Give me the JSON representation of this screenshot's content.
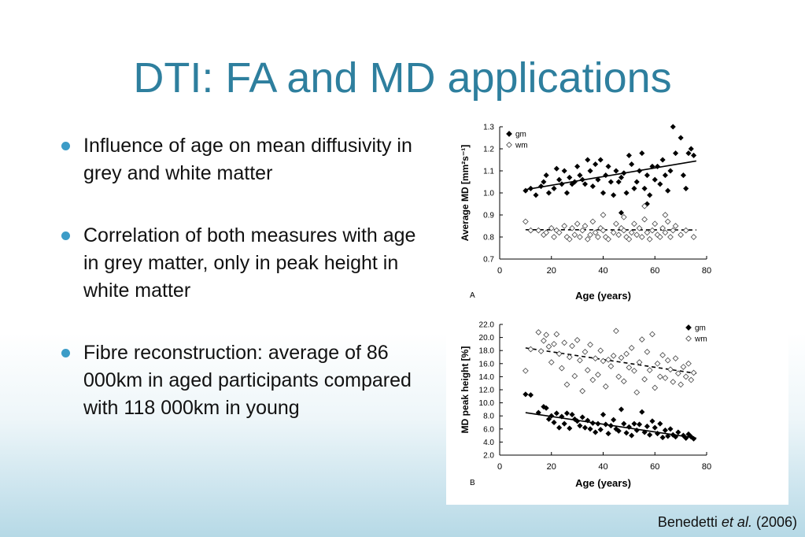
{
  "slide": {
    "title": "DTI: FA and MD applications",
    "bullets": [
      "Influence of age on mean diffusivity in grey and white matter",
      "Correlation of both measures with age in grey matter, only in peak height in white matter",
      "Fibre reconstruction: average of 86 000km in aged participants compared with 118 000km in young"
    ],
    "citation": {
      "author": "Benedetti",
      "etal": "et al.",
      "year": "(2006)"
    },
    "colors": {
      "title": "#2e7f9e",
      "bullet": "#3c9cc7"
    }
  },
  "chart_data": [
    {
      "type": "scatter",
      "panel": "A",
      "xlabel": "Age (years)",
      "ylabel": "Average MD [mm²s⁻¹]",
      "xlim": [
        0,
        80
      ],
      "ylim": [
        0.7,
        1.3
      ],
      "xticks": [
        "0",
        "20",
        "40",
        "60",
        "80"
      ],
      "yticks": [
        "0.7",
        "0.8",
        "0.9",
        "1.0",
        "1.1",
        "1.2",
        "1.3"
      ],
      "legend_position": "top-left",
      "series": [
        {
          "name": "gm",
          "marker": "filled-diamond",
          "points": [
            [
              10,
              1.01
            ],
            [
              12,
              1.02
            ],
            [
              14,
              0.99
            ],
            [
              16,
              1.03
            ],
            [
              17,
              1.05
            ],
            [
              18,
              1.08
            ],
            [
              19,
              1.0
            ],
            [
              21,
              1.02
            ],
            [
              22,
              1.11
            ],
            [
              23,
              1.06
            ],
            [
              24,
              1.04
            ],
            [
              25,
              1.1
            ],
            [
              26,
              1.0
            ],
            [
              27,
              1.07
            ],
            [
              28,
              1.04
            ],
            [
              29,
              1.05
            ],
            [
              30,
              1.12
            ],
            [
              31,
              1.08
            ],
            [
              32,
              1.06
            ],
            [
              33,
              1.04
            ],
            [
              34,
              1.15
            ],
            [
              35,
              1.1
            ],
            [
              36,
              1.03
            ],
            [
              37,
              1.13
            ],
            [
              38,
              1.06
            ],
            [
              39,
              1.15
            ],
            [
              40,
              1.0
            ],
            [
              41,
              1.08
            ],
            [
              42,
              1.12
            ],
            [
              43,
              1.05
            ],
            [
              44,
              0.99
            ],
            [
              45,
              1.1
            ],
            [
              46,
              1.05
            ],
            [
              47,
              1.07
            ],
            [
              48,
              1.09
            ],
            [
              49,
              1.0
            ],
            [
              50,
              1.17
            ],
            [
              51,
              1.13
            ],
            [
              52,
              1.02
            ],
            [
              53,
              1.05
            ],
            [
              54,
              1.1
            ],
            [
              55,
              1.18
            ],
            [
              56,
              1.02
            ],
            [
              57,
              1.08
            ],
            [
              58,
              0.99
            ],
            [
              59,
              1.12
            ],
            [
              60,
              1.06
            ],
            [
              61,
              1.12
            ],
            [
              62,
              1.04
            ],
            [
              63,
              1.15
            ],
            [
              64,
              1.08
            ],
            [
              65,
              1.01
            ],
            [
              66,
              1.1
            ],
            [
              67,
              1.3
            ],
            [
              68,
              1.18
            ],
            [
              70,
              1.25
            ],
            [
              71,
              1.08
            ],
            [
              72,
              1.02
            ],
            [
              73,
              1.18
            ],
            [
              74,
              1.2
            ],
            [
              75,
              1.17
            ],
            [
              47,
              0.91
            ],
            [
              57,
              0.95
            ]
          ]
        },
        {
          "name": "wm",
          "marker": "open-diamond",
          "points": [
            [
              10,
              0.87
            ],
            [
              12,
              0.83
            ],
            [
              15,
              0.83
            ],
            [
              17,
              0.81
            ],
            [
              18,
              0.82
            ],
            [
              20,
              0.84
            ],
            [
              21,
              0.8
            ],
            [
              22,
              0.83
            ],
            [
              23,
              0.82
            ],
            [
              25,
              0.85
            ],
            [
              26,
              0.8
            ],
            [
              27,
              0.79
            ],
            [
              28,
              0.84
            ],
            [
              29,
              0.81
            ],
            [
              30,
              0.86
            ],
            [
              31,
              0.8
            ],
            [
              32,
              0.83
            ],
            [
              33,
              0.85
            ],
            [
              34,
              0.79
            ],
            [
              35,
              0.81
            ],
            [
              36,
              0.87
            ],
            [
              37,
              0.82
            ],
            [
              38,
              0.8
            ],
            [
              39,
              0.84
            ],
            [
              40,
              0.83
            ],
            [
              41,
              0.8
            ],
            [
              42,
              0.79
            ],
            [
              44,
              0.82
            ],
            [
              45,
              0.86
            ],
            [
              46,
              0.81
            ],
            [
              47,
              0.84
            ],
            [
              48,
              0.83
            ],
            [
              49,
              0.8
            ],
            [
              50,
              0.79
            ],
            [
              51,
              0.82
            ],
            [
              52,
              0.86
            ],
            [
              53,
              0.81
            ],
            [
              54,
              0.84
            ],
            [
              55,
              0.8
            ],
            [
              56,
              0.88
            ],
            [
              57,
              0.82
            ],
            [
              58,
              0.79
            ],
            [
              59,
              0.83
            ],
            [
              60,
              0.86
            ],
            [
              61,
              0.81
            ],
            [
              62,
              0.8
            ],
            [
              63,
              0.84
            ],
            [
              64,
              0.82
            ],
            [
              65,
              0.87
            ],
            [
              66,
              0.8
            ],
            [
              67,
              0.83
            ],
            [
              68,
              0.85
            ],
            [
              70,
              0.81
            ],
            [
              72,
              0.83
            ],
            [
              75,
              0.8
            ],
            [
              40,
              0.9
            ],
            [
              48,
              0.89
            ],
            [
              56,
              0.94
            ],
            [
              64,
              0.9
            ]
          ]
        }
      ],
      "trend_lines": [
        {
          "series": "gm",
          "style": "solid",
          "from": [
            10,
            1.015
          ],
          "to": [
            76,
            1.145
          ]
        },
        {
          "series": "wm",
          "style": "dashed",
          "from": [
            10,
            0.833
          ],
          "to": [
            76,
            0.832
          ]
        }
      ]
    },
    {
      "type": "scatter",
      "panel": "B",
      "xlabel": "Age (years)",
      "ylabel": "MD peak height [%]",
      "xlim": [
        0,
        80
      ],
      "ylim": [
        2.0,
        22.0
      ],
      "xticks": [
        "0",
        "20",
        "40",
        "60",
        "80"
      ],
      "yticks": [
        "2.0",
        "4.0",
        "6.0",
        "8.0",
        "10.0",
        "12.0",
        "14.0",
        "16.0",
        "18.0",
        "20.0",
        "22.0"
      ],
      "legend_position": "top-right",
      "series": [
        {
          "name": "gm",
          "marker": "filled-diamond",
          "points": [
            [
              10,
              11.3
            ],
            [
              12,
              11.2
            ],
            [
              15,
              8.5
            ],
            [
              17,
              9.4
            ],
            [
              18,
              9.2
            ],
            [
              19,
              7.5
            ],
            [
              20,
              8.0
            ],
            [
              21,
              7.0
            ],
            [
              22,
              8.4
            ],
            [
              23,
              6.2
            ],
            [
              24,
              7.9
            ],
            [
              25,
              6.8
            ],
            [
              26,
              8.4
            ],
            [
              27,
              6.1
            ],
            [
              28,
              8.2
            ],
            [
              29,
              7.5
            ],
            [
              30,
              7.2
            ],
            [
              31,
              6.5
            ],
            [
              32,
              7.8
            ],
            [
              33,
              6.2
            ],
            [
              34,
              7.3
            ],
            [
              35,
              6.0
            ],
            [
              36,
              6.9
            ],
            [
              37,
              5.5
            ],
            [
              38,
              6.8
            ],
            [
              39,
              5.9
            ],
            [
              40,
              8.2
            ],
            [
              41,
              6.7
            ],
            [
              42,
              5.3
            ],
            [
              43,
              6.5
            ],
            [
              44,
              7.4
            ],
            [
              45,
              6.0
            ],
            [
              46,
              5.7
            ],
            [
              47,
              9.0
            ],
            [
              48,
              6.8
            ],
            [
              49,
              5.4
            ],
            [
              50,
              6.3
            ],
            [
              51,
              5.0
            ],
            [
              52,
              6.8
            ],
            [
              53,
              5.8
            ],
            [
              54,
              6.7
            ],
            [
              55,
              8.6
            ],
            [
              56,
              5.5
            ],
            [
              57,
              6.4
            ],
            [
              58,
              5.1
            ],
            [
              59,
              7.2
            ],
            [
              60,
              6.2
            ],
            [
              61,
              5.3
            ],
            [
              62,
              6.8
            ],
            [
              63,
              4.7
            ],
            [
              64,
              5.8
            ],
            [
              65,
              4.9
            ],
            [
              66,
              6.0
            ],
            [
              67,
              5.1
            ],
            [
              68,
              4.8
            ],
            [
              69,
              5.5
            ],
            [
              71,
              5.0
            ],
            [
              72,
              4.6
            ],
            [
              73,
              5.2
            ],
            [
              74,
              4.8
            ],
            [
              75,
              4.5
            ]
          ]
        },
        {
          "name": "wm",
          "marker": "open-diamond",
          "points": [
            [
              10,
              14.9
            ],
            [
              12,
              18.2
            ],
            [
              15,
              20.8
            ],
            [
              16,
              17.9
            ],
            [
              17,
              19.5
            ],
            [
              18,
              20.4
            ],
            [
              19,
              18.6
            ],
            [
              20,
              16.2
            ],
            [
              21,
              19.0
            ],
            [
              22,
              20.5
            ],
            [
              23,
              17.5
            ],
            [
              24,
              15.3
            ],
            [
              25,
              19.2
            ],
            [
              26,
              12.8
            ],
            [
              27,
              17.0
            ],
            [
              28,
              18.7
            ],
            [
              29,
              14.1
            ],
            [
              30,
              19.6
            ],
            [
              31,
              16.5
            ],
            [
              32,
              11.8
            ],
            [
              33,
              17.8
            ],
            [
              34,
              15.0
            ],
            [
              35,
              18.9
            ],
            [
              36,
              13.5
            ],
            [
              37,
              16.8
            ],
            [
              38,
              14.3
            ],
            [
              39,
              18.0
            ],
            [
              40,
              16.4
            ],
            [
              41,
              12.5
            ],
            [
              42,
              16.6
            ],
            [
              43,
              15.6
            ],
            [
              44,
              17.2
            ],
            [
              45,
              21.0
            ],
            [
              46,
              14.0
            ],
            [
              47,
              16.9
            ],
            [
              48,
              13.3
            ],
            [
              49,
              17.5
            ],
            [
              50,
              15.4
            ],
            [
              51,
              18.4
            ],
            [
              52,
              14.9
            ],
            [
              53,
              11.6
            ],
            [
              54,
              16.2
            ],
            [
              55,
              19.7
            ],
            [
              56,
              13.6
            ],
            [
              57,
              17.8
            ],
            [
              58,
              15.0
            ],
            [
              59,
              20.5
            ],
            [
              60,
              12.3
            ],
            [
              61,
              16.0
            ],
            [
              62,
              14.0
            ],
            [
              63,
              17.3
            ],
            [
              64,
              13.8
            ],
            [
              65,
              16.5
            ],
            [
              66,
              15.1
            ],
            [
              67,
              13.2
            ],
            [
              68,
              16.8
            ],
            [
              69,
              14.5
            ],
            [
              70,
              12.8
            ],
            [
              71,
              15.5
            ],
            [
              72,
              14.0
            ],
            [
              73,
              16.0
            ],
            [
              74,
              13.5
            ],
            [
              75,
              14.6
            ]
          ]
        }
      ],
      "trend_lines": [
        {
          "series": "gm",
          "style": "solid",
          "from": [
            10,
            8.5
          ],
          "to": [
            76,
            4.6
          ]
        },
        {
          "series": "wm",
          "style": "dashed",
          "from": [
            10,
            18.4
          ],
          "to": [
            76,
            14.5
          ]
        }
      ]
    }
  ]
}
